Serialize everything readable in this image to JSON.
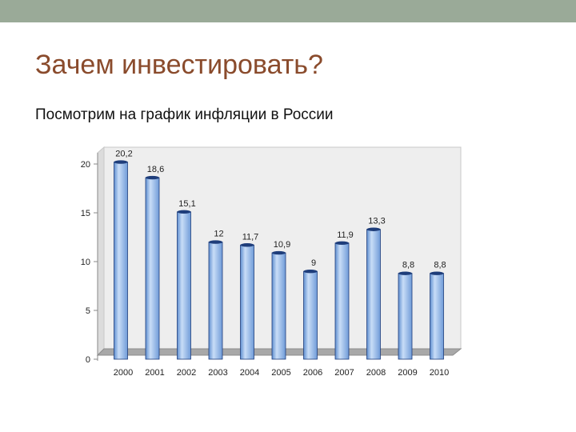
{
  "slide": {
    "title": "Зачем инвестировать?",
    "subtitle": "Посмотрим на график инфляции в России"
  },
  "colors": {
    "top_bar": "#9aaa98",
    "title": "#8a4b2c",
    "bar_fill": "#8fb6ea",
    "bar_stroke": "#1e3d7a",
    "wall": "#eeeeee",
    "floor": "#a8a8a8"
  },
  "chart_data": {
    "type": "bar",
    "title": "",
    "xlabel": "",
    "ylabel": "",
    "categories": [
      "2000",
      "2001",
      "2002",
      "2003",
      "2004",
      "2005",
      "2006",
      "2007",
      "2008",
      "2009",
      "2010"
    ],
    "values": [
      20.2,
      18.6,
      15.1,
      12,
      11.7,
      10.9,
      9,
      11.9,
      13.3,
      8.8,
      8.8
    ],
    "data_labels": [
      "20,2",
      "18,6",
      "15,1",
      "12",
      "11,7",
      "10,9",
      "9",
      "11,9",
      "13,3",
      "8,8",
      "8,8"
    ],
    "ylim": [
      0,
      20
    ],
    "yticks": [
      "0",
      "5",
      "10",
      "15",
      "20"
    ],
    "grid": false,
    "legend": false,
    "style": "3d-cylinder"
  }
}
